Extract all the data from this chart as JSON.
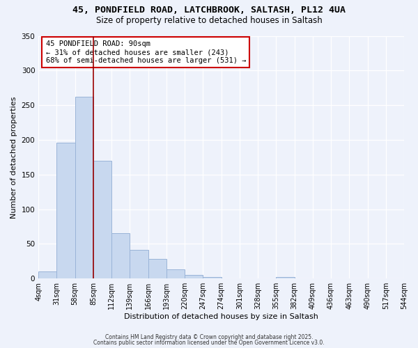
{
  "title_line1": "45, PONDFIELD ROAD, LATCHBROOK, SALTASH, PL12 4UA",
  "title_line2": "Size of property relative to detached houses in Saltash",
  "xlabel": "Distribution of detached houses by size in Saltash",
  "ylabel": "Number of detached properties",
  "bar_values": [
    10,
    196,
    262,
    170,
    65,
    41,
    28,
    13,
    5,
    2,
    0,
    0,
    0,
    2,
    0,
    0,
    0,
    0,
    0,
    0
  ],
  "bin_labels": [
    "4sqm",
    "31sqm",
    "58sqm",
    "85sqm",
    "112sqm",
    "139sqm",
    "166sqm",
    "193sqm",
    "220sqm",
    "247sqm",
    "274sqm",
    "301sqm",
    "328sqm",
    "355sqm",
    "382sqm",
    "409sqm",
    "436sqm",
    "463sqm",
    "490sqm",
    "517sqm",
    "544sqm"
  ],
  "bar_color": "#c8d8ef",
  "bar_edge_color": "#9ab4d8",
  "vline_x": 3,
  "vline_color": "#990000",
  "annotation_text": "45 PONDFIELD ROAD: 90sqm\n← 31% of detached houses are smaller (243)\n68% of semi-detached houses are larger (531) →",
  "annotation_box_facecolor": "#ffffff",
  "annotation_box_edgecolor": "#cc0000",
  "ylim": [
    0,
    350
  ],
  "yticks": [
    0,
    50,
    100,
    150,
    200,
    250,
    300,
    350
  ],
  "footer_line1": "Contains HM Land Registry data © Crown copyright and database right 2025.",
  "footer_line2": "Contains public sector information licensed under the Open Government Licence v3.0.",
  "background_color": "#eef2fb",
  "grid_color": "#ffffff",
  "title_fontsize": 9.5,
  "subtitle_fontsize": 8.5,
  "axis_label_fontsize": 8,
  "tick_fontsize": 7,
  "annotation_fontsize": 7.5,
  "footer_fontsize": 5.5
}
